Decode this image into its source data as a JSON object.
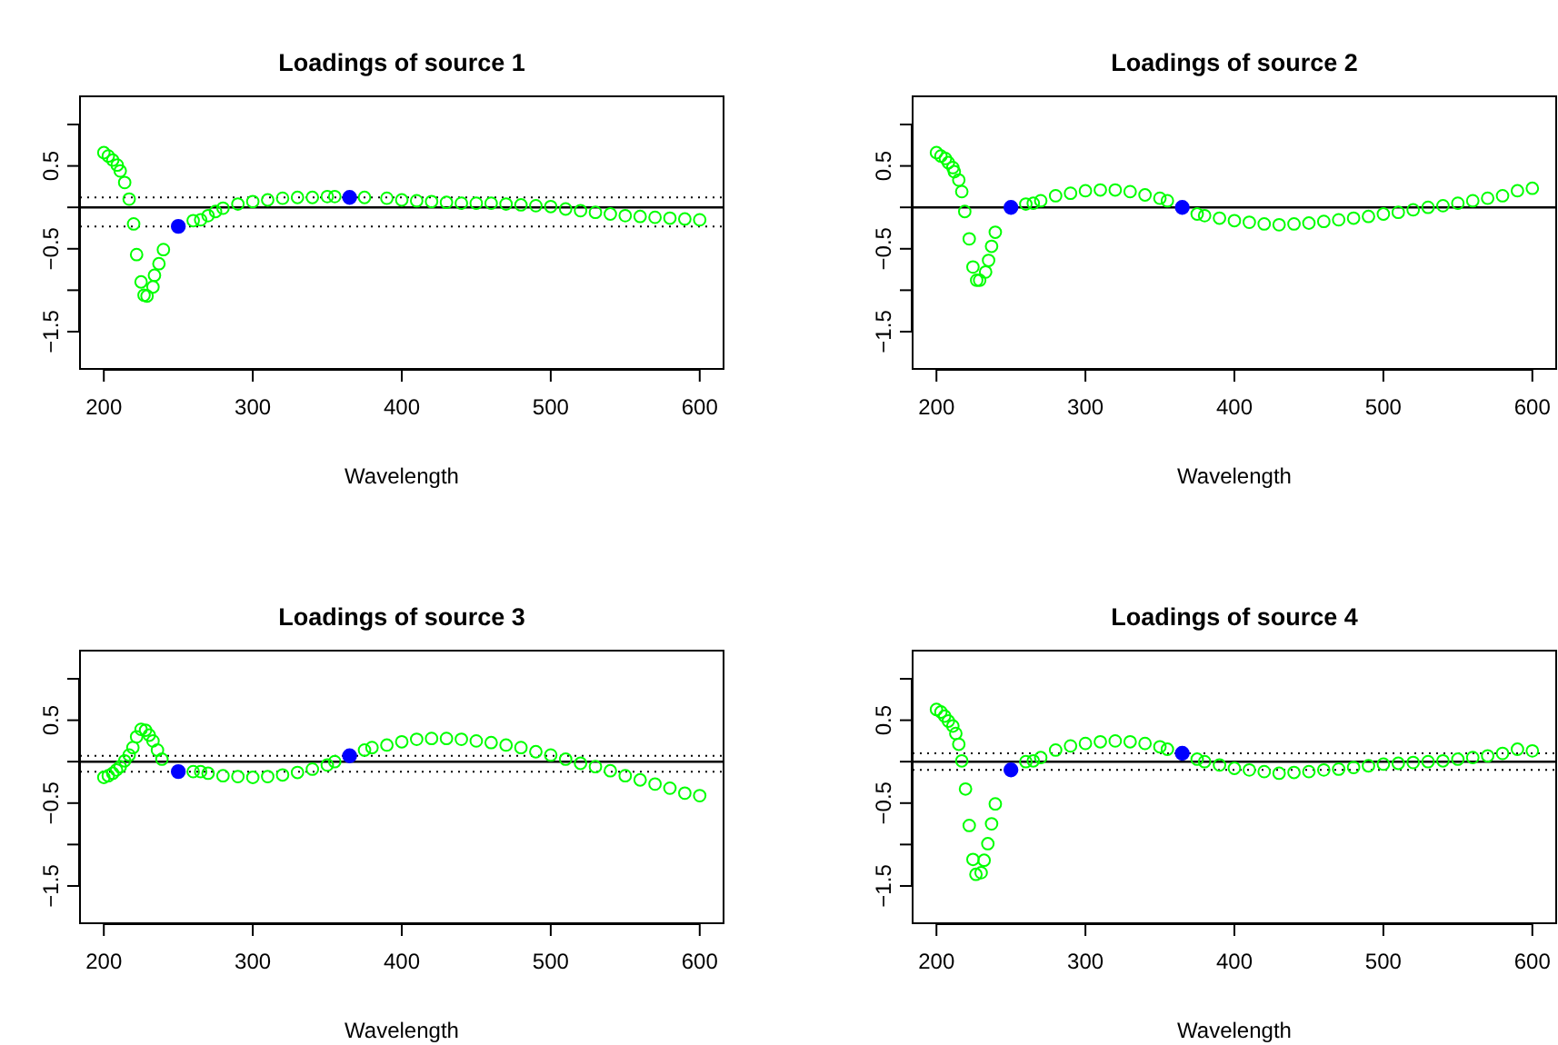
{
  "chart_data": [
    {
      "type": "scatter",
      "title": "Loadings of source 1",
      "xlabel": "Wavelength",
      "xlim": [
        184,
        616
      ],
      "ylim": [
        -1.95,
        1.34
      ],
      "xticks": [
        200,
        300,
        400,
        500,
        600
      ],
      "yticks": [
        {
          "value": -1.5,
          "label": "−1.5"
        },
        {
          "value": -1,
          "label": null
        },
        {
          "value": -0.5,
          "label": "−0.5"
        },
        {
          "value": 0,
          "label": null
        },
        {
          "value": 0.5,
          "label": "0.5"
        },
        {
          "value": 1,
          "label": null
        }
      ],
      "marker": "circle",
      "grid": false,
      "ref_lines": [
        {
          "axis": "y",
          "value": 0,
          "line_style": "solid",
          "color": "#000000"
        },
        {
          "axis": "y",
          "value": -0.23,
          "line_style": "dotted",
          "color": "#000000"
        },
        {
          "axis": "y",
          "value": 0.12,
          "line_style": "dotted",
          "color": "#000000"
        }
      ],
      "series": [
        {
          "color": "#00ff00",
          "x": [
            200,
            203,
            206,
            209,
            211,
            214,
            217,
            220,
            222,
            225,
            227,
            229,
            233,
            234,
            237,
            240,
            260,
            265,
            270,
            275,
            280,
            290,
            300,
            310,
            320,
            330,
            340,
            350,
            355,
            375,
            390,
            400,
            410,
            420,
            430,
            440,
            450,
            460,
            470,
            480,
            490,
            500,
            510,
            520,
            530,
            540,
            550,
            560,
            570,
            580,
            590,
            600
          ],
          "values": [
            0.66,
            0.62,
            0.57,
            0.51,
            0.44,
            0.3,
            0.1,
            -0.2,
            -0.57,
            -0.9,
            -1.06,
            -1.07,
            -0.96,
            -0.82,
            -0.68,
            -0.51,
            -0.16,
            -0.15,
            -0.1,
            -0.05,
            -0.01,
            0.04,
            0.07,
            0.09,
            0.11,
            0.12,
            0.12,
            0.13,
            0.13,
            0.12,
            0.11,
            0.09,
            0.08,
            0.07,
            0.06,
            0.05,
            0.05,
            0.05,
            0.04,
            0.03,
            0.02,
            0.01,
            -0.02,
            -0.04,
            -0.06,
            -0.08,
            -0.1,
            -0.11,
            -0.12,
            -0.13,
            -0.14,
            -0.15
          ]
        },
        {
          "color": "#0000ff",
          "x": [
            250,
            365
          ],
          "values": [
            -0.23,
            0.12
          ]
        }
      ]
    },
    {
      "type": "scatter",
      "title": "Loadings of source 2",
      "xlabel": "Wavelength",
      "xlim": [
        184,
        616
      ],
      "ylim": [
        -1.95,
        1.34
      ],
      "xticks": [
        200,
        300,
        400,
        500,
        600
      ],
      "yticks": [
        {
          "value": -1.5,
          "label": "−1.5"
        },
        {
          "value": -1,
          "label": null
        },
        {
          "value": -0.5,
          "label": "−0.5"
        },
        {
          "value": 0,
          "label": null
        },
        {
          "value": 0.5,
          "label": "0.5"
        },
        {
          "value": 1,
          "label": null
        }
      ],
      "marker": "circle",
      "grid": false,
      "ref_lines": [
        {
          "axis": "y",
          "value": 0,
          "line_style": "solid",
          "color": "#000000"
        }
      ],
      "series": [
        {
          "color": "#00ff00",
          "x": [
            200,
            203,
            206,
            208,
            211,
            212,
            215,
            217,
            219,
            222,
            224.5,
            227,
            229,
            233,
            235,
            237,
            239.5,
            260,
            265,
            270,
            280,
            290,
            300,
            310,
            320,
            330,
            340,
            350,
            355,
            375,
            380,
            390,
            400,
            410,
            420,
            430,
            440,
            450,
            460,
            470,
            480,
            490,
            500,
            510,
            520,
            530,
            540,
            550,
            560,
            570,
            580,
            590,
            600
          ],
          "values": [
            0.66,
            0.62,
            0.59,
            0.54,
            0.48,
            0.43,
            0.33,
            0.19,
            -0.05,
            -0.38,
            -0.72,
            -0.88,
            -0.88,
            -0.78,
            -0.64,
            -0.47,
            -0.3,
            0.04,
            0.05,
            0.08,
            0.14,
            0.17,
            0.2,
            0.21,
            0.21,
            0.19,
            0.15,
            0.11,
            0.08,
            -0.08,
            -0.1,
            -0.13,
            -0.16,
            -0.18,
            -0.2,
            -0.21,
            -0.2,
            -0.19,
            -0.17,
            -0.15,
            -0.13,
            -0.11,
            -0.08,
            -0.06,
            -0.03,
            0,
            0.02,
            0.05,
            0.08,
            0.11,
            0.14,
            0.2,
            0.23
          ]
        },
        {
          "color": "#0000ff",
          "x": [
            250,
            365
          ],
          "values": [
            0,
            0
          ]
        }
      ]
    },
    {
      "type": "scatter",
      "title": "Loadings of source 3",
      "xlabel": "Wavelength",
      "xlim": [
        184,
        616
      ],
      "ylim": [
        -1.95,
        1.34
      ],
      "xticks": [
        200,
        300,
        400,
        500,
        600
      ],
      "yticks": [
        {
          "value": -1.5,
          "label": "−1.5"
        },
        {
          "value": -1,
          "label": null
        },
        {
          "value": -0.5,
          "label": "−0.5"
        },
        {
          "value": 0,
          "label": null
        },
        {
          "value": 0.5,
          "label": "0.5"
        },
        {
          "value": 1,
          "label": null
        }
      ],
      "marker": "circle",
      "grid": false,
      "ref_lines": [
        {
          "axis": "y",
          "value": 0,
          "line_style": "solid",
          "color": "#000000"
        },
        {
          "axis": "y",
          "value": -0.12,
          "line_style": "dotted",
          "color": "#000000"
        },
        {
          "axis": "y",
          "value": 0.07,
          "line_style": "dotted",
          "color": "#000000"
        }
      ],
      "series": [
        {
          "color": "#00ff00",
          "x": [
            200,
            203,
            206,
            208.5,
            211,
            214,
            217,
            219.5,
            222,
            225,
            228,
            230.5,
            233,
            236,
            239,
            260,
            265,
            270,
            280,
            290,
            300,
            310,
            320,
            330,
            340,
            350,
            355,
            375,
            380,
            390,
            400,
            410,
            420,
            430,
            440,
            450,
            460,
            470,
            480,
            490,
            500,
            510,
            520,
            530,
            540,
            550,
            560,
            570,
            580,
            590,
            600
          ],
          "values": [
            -0.19,
            -0.17,
            -0.14,
            -0.1,
            -0.06,
            0.01,
            0.08,
            0.17,
            0.3,
            0.39,
            0.38,
            0.32,
            0.25,
            0.14,
            0.03,
            -0.12,
            -0.12,
            -0.14,
            -0.17,
            -0.18,
            -0.19,
            -0.18,
            -0.16,
            -0.13,
            -0.09,
            -0.04,
            0,
            0.14,
            0.17,
            0.2,
            0.24,
            0.27,
            0.28,
            0.28,
            0.27,
            0.25,
            0.23,
            0.2,
            0.17,
            0.12,
            0.08,
            0.03,
            -0.02,
            -0.06,
            -0.11,
            -0.17,
            -0.22,
            -0.27,
            -0.32,
            -0.38,
            -0.41
          ]
        },
        {
          "color": "#0000ff",
          "x": [
            250,
            365
          ],
          "values": [
            -0.12,
            0.07
          ]
        }
      ]
    },
    {
      "type": "scatter",
      "title": "Loadings of source 4",
      "xlabel": "Wavelength",
      "xlim": [
        184,
        616
      ],
      "ylim": [
        -1.95,
        1.34
      ],
      "xticks": [
        200,
        300,
        400,
        500,
        600
      ],
      "yticks": [
        {
          "value": -1.5,
          "label": "−1.5"
        },
        {
          "value": -1,
          "label": null
        },
        {
          "value": -0.5,
          "label": "−0.5"
        },
        {
          "value": 0,
          "label": null
        },
        {
          "value": 0.5,
          "label": "0.5"
        },
        {
          "value": 1,
          "label": null
        }
      ],
      "marker": "circle",
      "grid": false,
      "ref_lines": [
        {
          "axis": "y",
          "value": 0,
          "line_style": "solid",
          "color": "#000000"
        },
        {
          "axis": "y",
          "value": -0.1,
          "line_style": "dotted",
          "color": "#000000"
        },
        {
          "axis": "y",
          "value": 0.1,
          "line_style": "dotted",
          "color": "#000000"
        }
      ],
      "series": [
        {
          "color": "#00ff00",
          "x": [
            200,
            203,
            205.5,
            208,
            211,
            213,
            215,
            217,
            219.5,
            222,
            224.5,
            226.5,
            230,
            232,
            234.5,
            237,
            239.5,
            260,
            265,
            270,
            280,
            290,
            300,
            310,
            320,
            330,
            340,
            350,
            355,
            375,
            380,
            390,
            400,
            410,
            420,
            430,
            440,
            450,
            460,
            470,
            480,
            490,
            500,
            510,
            520,
            530,
            540,
            550,
            560,
            570,
            580,
            590,
            600
          ],
          "values": [
            0.63,
            0.6,
            0.55,
            0.49,
            0.43,
            0.34,
            0.21,
            0.01,
            -0.33,
            -0.77,
            -1.18,
            -1.36,
            -1.34,
            -1.19,
            -0.99,
            -0.75,
            -0.51,
            0,
            0.01,
            0.05,
            0.14,
            0.19,
            0.22,
            0.24,
            0.25,
            0.24,
            0.22,
            0.18,
            0.15,
            0.03,
            0,
            -0.04,
            -0.08,
            -0.1,
            -0.12,
            -0.14,
            -0.13,
            -0.12,
            -0.1,
            -0.09,
            -0.07,
            -0.05,
            -0.03,
            -0.02,
            -0.01,
            0,
            0.01,
            0.03,
            0.05,
            0.07,
            0.1,
            0.15,
            0.13
          ]
        },
        {
          "color": "#0000ff",
          "x": [
            250,
            365
          ],
          "values": [
            -0.1,
            0.1
          ]
        }
      ]
    }
  ]
}
